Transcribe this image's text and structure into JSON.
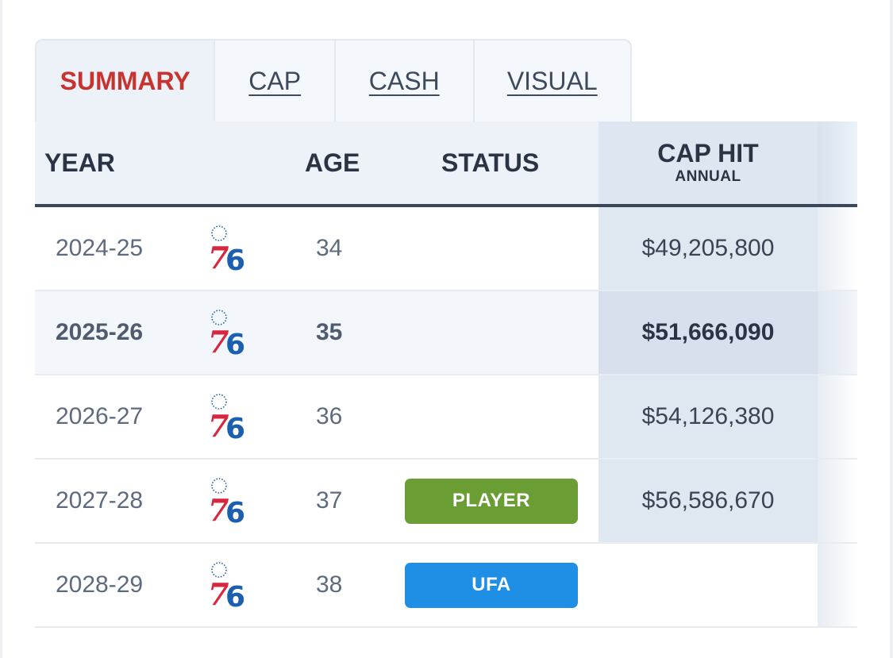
{
  "tabs": [
    {
      "label": "SUMMARY",
      "active": true
    },
    {
      "label": "CAP",
      "active": false
    },
    {
      "label": "CASH",
      "active": false
    },
    {
      "label": "VISUAL",
      "active": false
    }
  ],
  "header": {
    "year": "YEAR",
    "age": "AGE",
    "status": "STATUS",
    "cap_hit": "CAP HIT",
    "cap_hit_sub": "ANNUAL"
  },
  "team_logo": {
    "text": "76",
    "icon": "sixers-logo-icon"
  },
  "rows": [
    {
      "year": "2024-25",
      "age": "34",
      "status": "",
      "cap_hit": "$49,205,800"
    },
    {
      "year": "2025-26",
      "age": "35",
      "status": "",
      "cap_hit": "$51,666,090"
    },
    {
      "year": "2026-27",
      "age": "36",
      "status": "",
      "cap_hit": "$54,126,380"
    },
    {
      "year": "2027-28",
      "age": "37",
      "status": "PLAYER",
      "cap_hit": "$56,586,670"
    },
    {
      "year": "2028-29",
      "age": "38",
      "status": "UFA",
      "cap_hit": ""
    }
  ],
  "colors": {
    "active_tab": "#c8332f",
    "player_badge": "#6a9e35",
    "ufa_badge": "#1f8fe6",
    "logo_red": "#d7263d",
    "logo_blue": "#1b5fae"
  }
}
